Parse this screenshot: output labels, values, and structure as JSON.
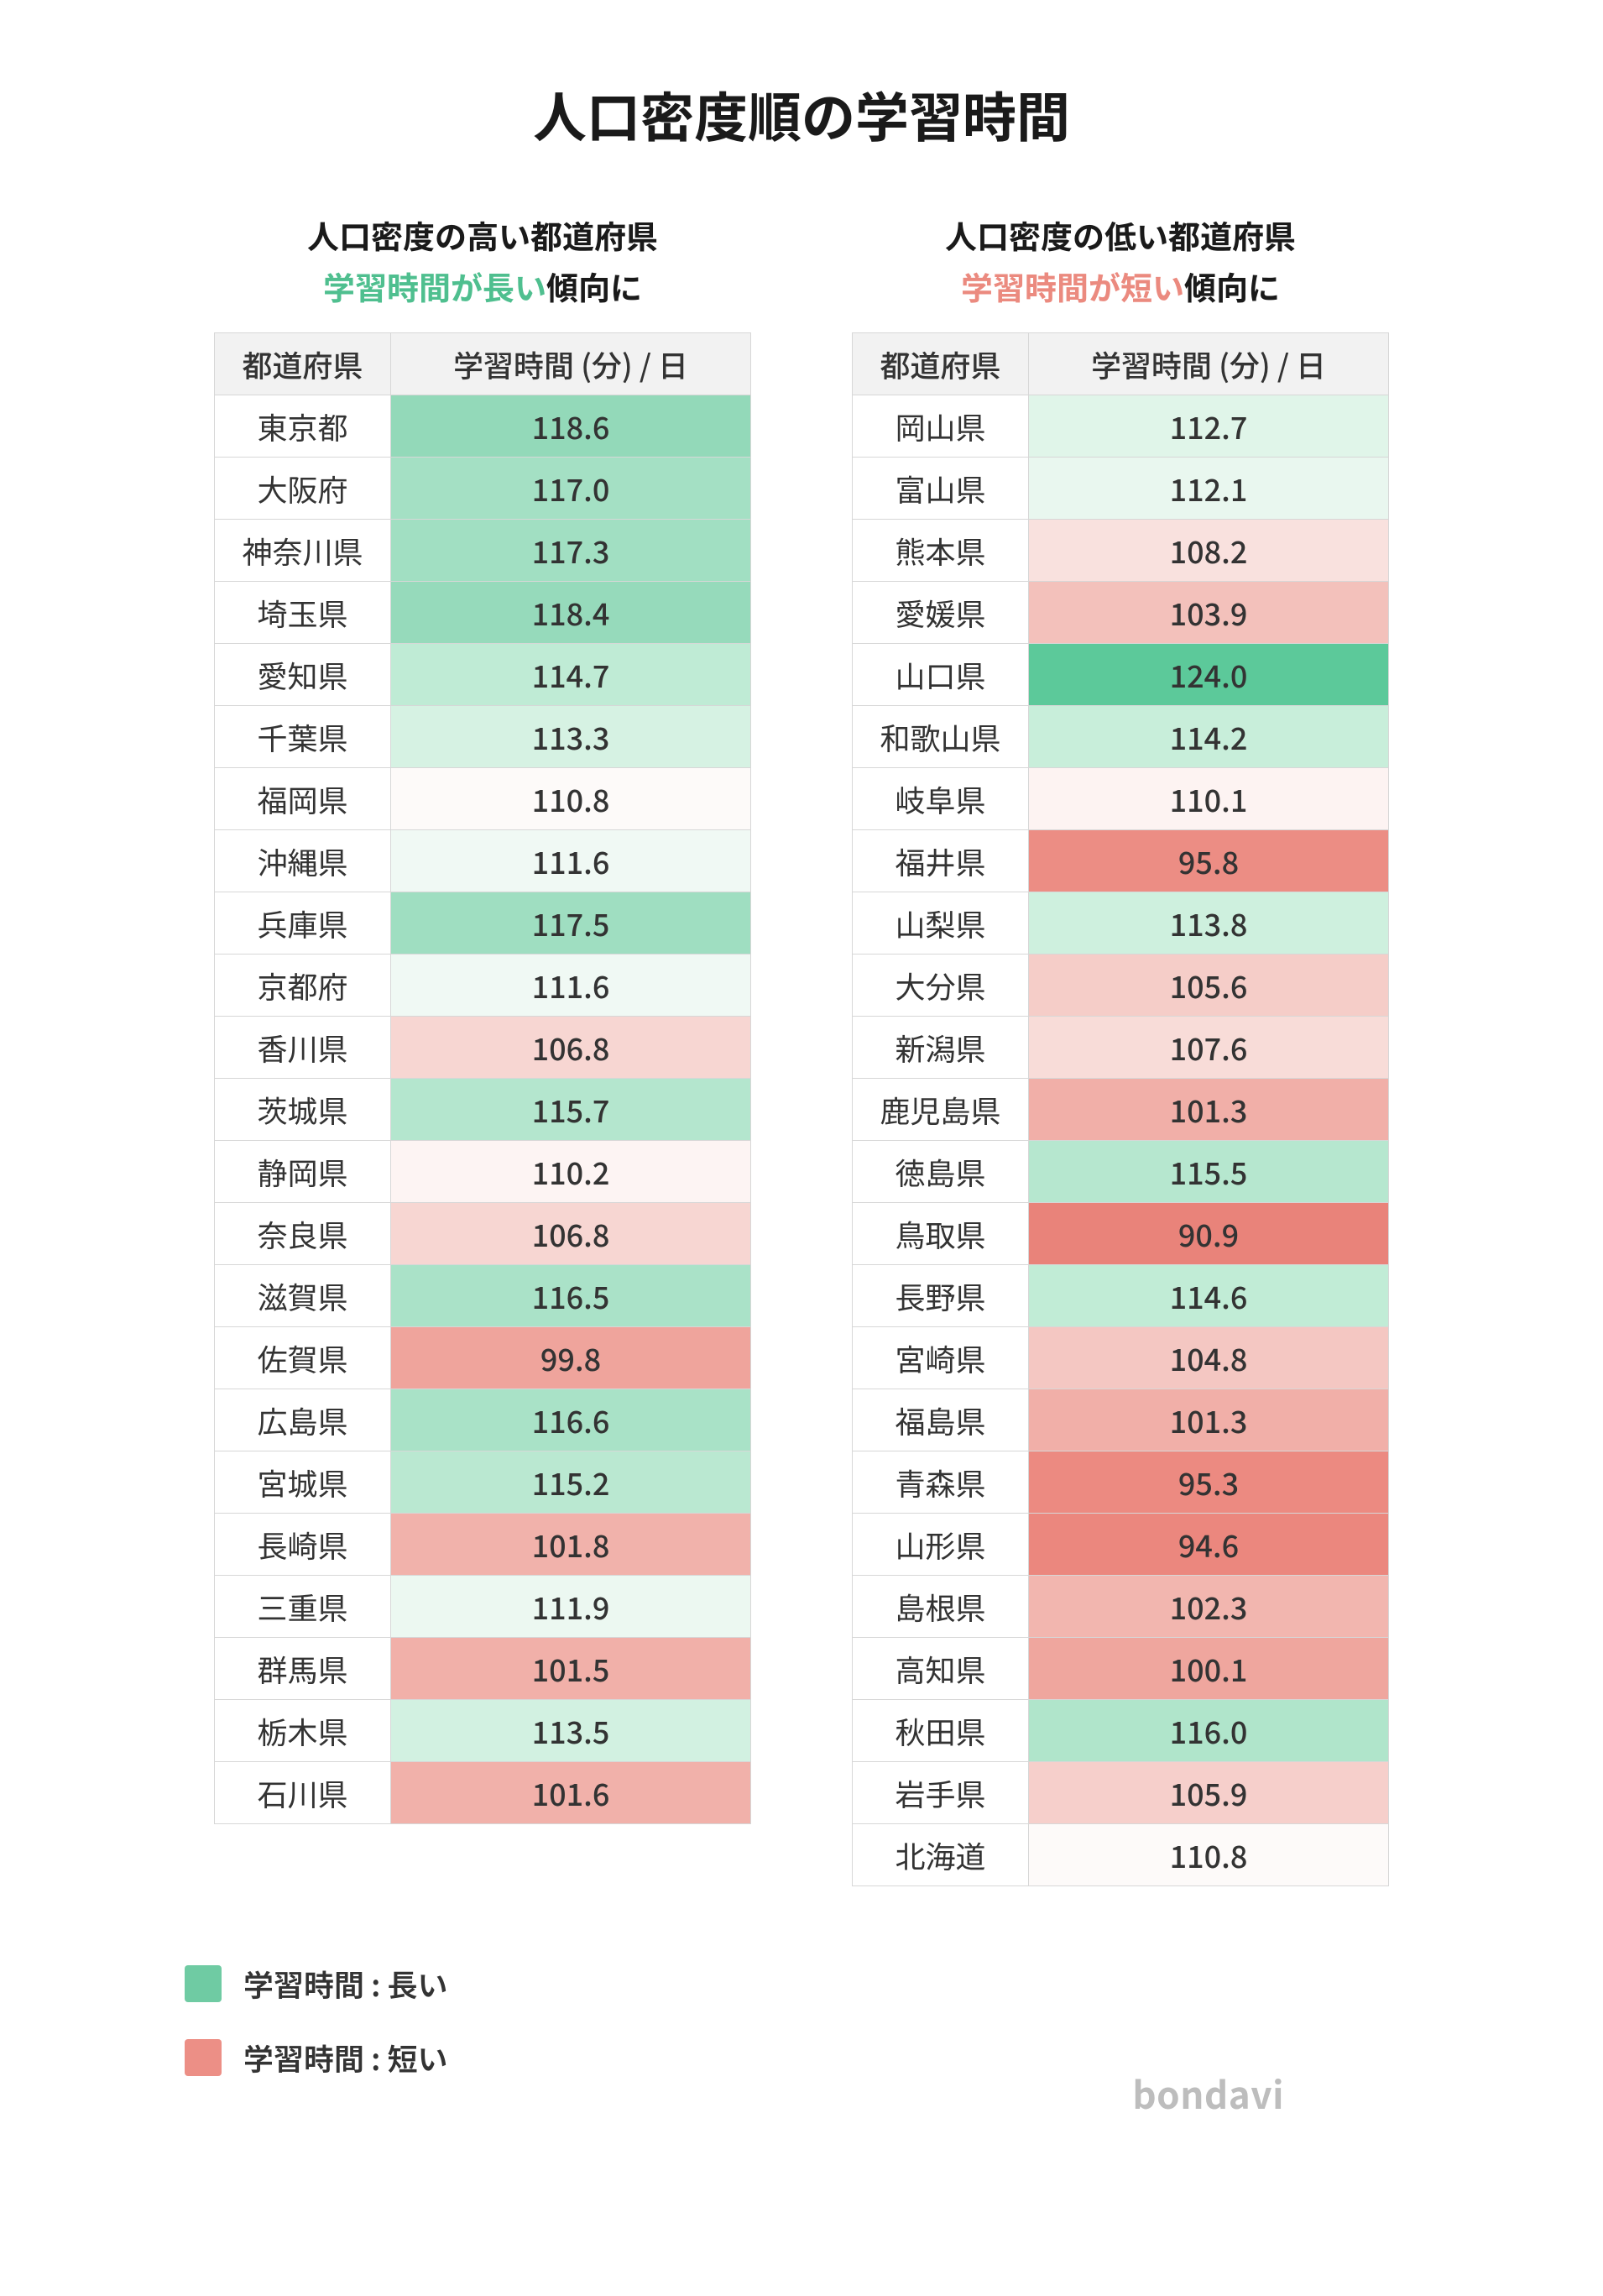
{
  "title": "人口密度順の学習時間",
  "brand": "bondavi",
  "columns": {
    "pref": "都道府県",
    "value": "学習時間 (分) / 日"
  },
  "colors": {
    "green_strong": "#5cc99a",
    "red_strong": "#e9837a",
    "legend_green": "#6fcba3",
    "legend_red": "#ec8f86",
    "hl_green_text": "#4fbf8f",
    "hl_red_text": "#eb8a7f"
  },
  "heatmap_scale": {
    "min": 90.9,
    "mid": 111.0,
    "max": 124.0
  },
  "left": {
    "subtitle": "人口密度の高い都道府県",
    "desc_highlight": "学習時間が長い",
    "desc_suffix": "傾向に",
    "highlight_class": "hl-green",
    "rows": [
      {
        "pref": "東京都",
        "value": 118.6,
        "bg": "#93d9b9"
      },
      {
        "pref": "大阪府",
        "value": 117.0,
        "bg": "#a4e0c4"
      },
      {
        "pref": "神奈川県",
        "value": 117.3,
        "bg": "#a1dfc2"
      },
      {
        "pref": "埼玉県",
        "value": 118.4,
        "bg": "#96dabb"
      },
      {
        "pref": "愛知県",
        "value": 114.7,
        "bg": "#bfebd5"
      },
      {
        "pref": "千葉県",
        "value": 113.3,
        "bg": "#d6f2e3"
      },
      {
        "pref": "福岡県",
        "value": 110.8,
        "bg": "#fdfaf9"
      },
      {
        "pref": "沖縄県",
        "value": 111.6,
        "bg": "#f0f9f4"
      },
      {
        "pref": "兵庫県",
        "value": 117.5,
        "bg": "#9fdec1"
      },
      {
        "pref": "京都府",
        "value": 111.6,
        "bg": "#f0f9f4"
      },
      {
        "pref": "香川県",
        "value": 106.8,
        "bg": "#f7d6d2"
      },
      {
        "pref": "茨城県",
        "value": 115.7,
        "bg": "#b4e6ce"
      },
      {
        "pref": "静岡県",
        "value": 110.2,
        "bg": "#fdf4f3"
      },
      {
        "pref": "奈良県",
        "value": 106.8,
        "bg": "#f7d6d2"
      },
      {
        "pref": "滋賀県",
        "value": 116.5,
        "bg": "#aae2c8"
      },
      {
        "pref": "佐賀県",
        "value": 99.8,
        "bg": "#efa49c"
      },
      {
        "pref": "広島県",
        "value": 116.6,
        "bg": "#a9e2c7"
      },
      {
        "pref": "宮城県",
        "value": 115.2,
        "bg": "#bae8d1"
      },
      {
        "pref": "長崎県",
        "value": 101.8,
        "bg": "#f1b2ab"
      },
      {
        "pref": "三重県",
        "value": 111.9,
        "bg": "#ecf8f1"
      },
      {
        "pref": "群馬県",
        "value": 101.5,
        "bg": "#f1b0a9"
      },
      {
        "pref": "栃木県",
        "value": 113.5,
        "bg": "#d2f1e1"
      },
      {
        "pref": "石川県",
        "value": 101.6,
        "bg": "#f1b1aa"
      }
    ]
  },
  "right": {
    "subtitle": "人口密度の低い都道府県",
    "desc_highlight": "学習時間が短い",
    "desc_suffix": "傾向に",
    "highlight_class": "hl-red",
    "rows": [
      {
        "pref": "岡山県",
        "value": 112.7,
        "bg": "#e0f5e9"
      },
      {
        "pref": "富山県",
        "value": 112.1,
        "bg": "#e9f7ef"
      },
      {
        "pref": "熊本県",
        "value": 108.2,
        "bg": "#f9e1de"
      },
      {
        "pref": "愛媛県",
        "value": 103.9,
        "bg": "#f3c1bb"
      },
      {
        "pref": "山口県",
        "value": 124.0,
        "bg": "#5cc99a"
      },
      {
        "pref": "和歌山県",
        "value": 114.2,
        "bg": "#c8eeda"
      },
      {
        "pref": "岐阜県",
        "value": 110.1,
        "bg": "#fdf3f2"
      },
      {
        "pref": "福井県",
        "value": 95.8,
        "bg": "#ec8d84"
      },
      {
        "pref": "山梨県",
        "value": 113.8,
        "bg": "#cef0de"
      },
      {
        "pref": "大分県",
        "value": 105.6,
        "bg": "#f5cdc8"
      },
      {
        "pref": "新潟県",
        "value": 107.6,
        "bg": "#f8dcd8"
      },
      {
        "pref": "鹿児島県",
        "value": 101.3,
        "bg": "#f1afa8"
      },
      {
        "pref": "徳島県",
        "value": 115.5,
        "bg": "#b6e7cf"
      },
      {
        "pref": "鳥取県",
        "value": 90.9,
        "bg": "#e9837a"
      },
      {
        "pref": "長野県",
        "value": 114.6,
        "bg": "#c1ecd6"
      },
      {
        "pref": "宮崎県",
        "value": 104.8,
        "bg": "#f4c7c2"
      },
      {
        "pref": "福島県",
        "value": 101.3,
        "bg": "#f1afa8"
      },
      {
        "pref": "青森県",
        "value": 95.3,
        "bg": "#ec8a81"
      },
      {
        "pref": "山形県",
        "value": 94.6,
        "bg": "#eb877e"
      },
      {
        "pref": "島根県",
        "value": 102.3,
        "bg": "#f2b6af"
      },
      {
        "pref": "高知県",
        "value": 100.1,
        "bg": "#efa69e"
      },
      {
        "pref": "秋田県",
        "value": 116.0,
        "bg": "#b0e5cb"
      },
      {
        "pref": "岩手県",
        "value": 105.9,
        "bg": "#f6cfcb"
      },
      {
        "pref": "北海道",
        "value": 110.8,
        "bg": "#fdfaf9"
      }
    ]
  },
  "legend": {
    "long": "学習時間 : 長い",
    "short": "学習時間 : 短い"
  }
}
